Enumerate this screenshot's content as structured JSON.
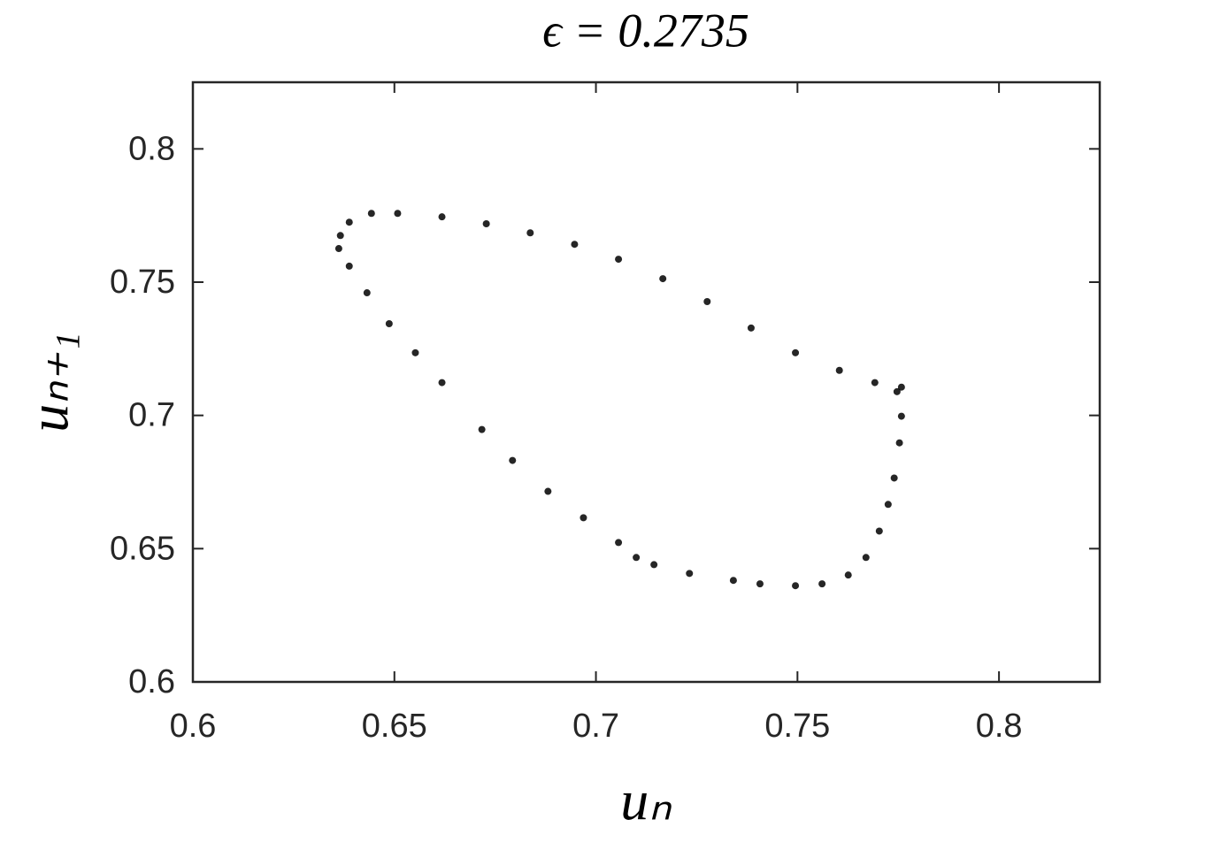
{
  "chart_data": {
    "type": "scatter",
    "title": "ϵ = 0.2735",
    "xlabel": "uₙ",
    "ylabel": "uₙ₊₁",
    "x": [
      0.6366,
      0.6388,
      0.6443,
      0.6508,
      0.6618,
      0.6728,
      0.6837,
      0.6947,
      0.7056,
      0.7166,
      0.7276,
      0.7385,
      0.7495,
      0.7604,
      0.7692,
      0.7747,
      0.7758,
      0.7758,
      0.7753,
      0.774,
      0.7725,
      0.7703,
      0.767,
      0.7626,
      0.7561,
      0.7495,
      0.7407,
      0.7341,
      0.7232,
      0.7144,
      0.71,
      0.7056,
      0.6969,
      0.6881,
      0.6793,
      0.6717,
      0.6618,
      0.6552,
      0.6487,
      0.6432,
      0.6388,
      0.6362
    ],
    "values": [
      0.7675,
      0.7725,
      0.7758,
      0.7758,
      0.7745,
      0.7719,
      0.7685,
      0.7642,
      0.7586,
      0.7513,
      0.7427,
      0.7328,
      0.7235,
      0.7169,
      0.7123,
      0.7089,
      0.7106,
      0.6997,
      0.6897,
      0.6765,
      0.6666,
      0.6566,
      0.6467,
      0.6401,
      0.6368,
      0.6361,
      0.6368,
      0.6381,
      0.6407,
      0.644,
      0.6467,
      0.6523,
      0.6616,
      0.6715,
      0.6831,
      0.6947,
      0.7123,
      0.7235,
      0.7344,
      0.746,
      0.756,
      0.7626
    ],
    "color": "#000000",
    "xlim": [
      0.6,
      0.825
    ],
    "ylim": [
      0.6,
      0.825
    ],
    "xticks": [
      0.6,
      0.65,
      0.7,
      0.75,
      0.8
    ],
    "yticks": [
      0.6,
      0.65,
      0.7,
      0.75,
      0.8
    ]
  }
}
